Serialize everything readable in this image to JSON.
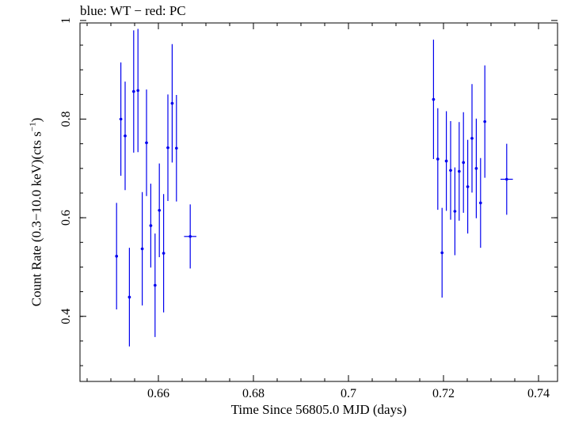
{
  "chart_data": {
    "type": "scatter",
    "title": "blue: WT − red: PC",
    "xlabel": "Time Since 56805.0 MJD (days)",
    "ylabel": "Count Rate (0.3−10.0 keV)(cts s",
    "ylabel_sup": "−1",
    "ylabel_end": ")",
    "xlim": [
      0.6435,
      0.744
    ],
    "ylim": [
      0.268,
      0.995
    ],
    "x_ticks": [
      0.66,
      0.68,
      0.7,
      0.72,
      0.74
    ],
    "x_tick_labels": [
      "0.66",
      "0.68",
      "0.7",
      "0.72",
      "0.74"
    ],
    "y_ticks": [
      0.4,
      0.6,
      0.8,
      1.0
    ],
    "y_tick_labels": [
      "0.4",
      "0.6",
      "0.8",
      "1"
    ],
    "color": "#0000ee",
    "series": [
      {
        "name": "WT",
        "points": [
          {
            "x": 0.6512,
            "y": 0.522,
            "yerr": 0.108,
            "xerr": 0.0003
          },
          {
            "x": 0.6521,
            "y": 0.8,
            "yerr": 0.115,
            "xerr": 0.0003
          },
          {
            "x": 0.653,
            "y": 0.766,
            "yerr": 0.11,
            "xerr": 0.0003
          },
          {
            "x": 0.6539,
            "y": 0.439,
            "yerr": 0.1,
            "xerr": 0.0003
          },
          {
            "x": 0.6548,
            "y": 0.856,
            "yerr": 0.124,
            "xerr": 0.0003
          },
          {
            "x": 0.6557,
            "y": 0.858,
            "yerr": 0.125,
            "xerr": 0.0003
          },
          {
            "x": 0.6566,
            "y": 0.537,
            "yerr": 0.115,
            "xerr": 0.0003
          },
          {
            "x": 0.6575,
            "y": 0.752,
            "yerr": 0.108,
            "xerr": 0.0003
          },
          {
            "x": 0.6584,
            "y": 0.584,
            "yerr": 0.085,
            "xerr": 0.0003
          },
          {
            "x": 0.6593,
            "y": 0.463,
            "yerr": 0.105,
            "xerr": 0.0003
          },
          {
            "x": 0.6602,
            "y": 0.615,
            "yerr": 0.095,
            "xerr": 0.0003
          },
          {
            "x": 0.6611,
            "y": 0.528,
            "yerr": 0.12,
            "xerr": 0.0003
          },
          {
            "x": 0.662,
            "y": 0.742,
            "yerr": 0.108,
            "xerr": 0.0003
          },
          {
            "x": 0.6629,
            "y": 0.832,
            "yerr": 0.12,
            "xerr": 0.0003
          },
          {
            "x": 0.6638,
            "y": 0.741,
            "yerr": 0.108,
            "xerr": 0.0003
          },
          {
            "x": 0.6667,
            "y": 0.562,
            "yerr": 0.065,
            "xerr": 0.0013
          },
          {
            "x": 0.7179,
            "y": 0.84,
            "yerr": 0.121,
            "xerr": 0.0003
          },
          {
            "x": 0.7188,
            "y": 0.719,
            "yerr": 0.103,
            "xerr": 0.0003
          },
          {
            "x": 0.7197,
            "y": 0.529,
            "yerr": 0.091,
            "xerr": 0.0003
          },
          {
            "x": 0.7206,
            "y": 0.715,
            "yerr": 0.101,
            "xerr": 0.0003
          },
          {
            "x": 0.7215,
            "y": 0.696,
            "yerr": 0.1,
            "xerr": 0.0003
          },
          {
            "x": 0.7224,
            "y": 0.613,
            "yerr": 0.089,
            "xerr": 0.0003
          },
          {
            "x": 0.7233,
            "y": 0.694,
            "yerr": 0.1,
            "xerr": 0.0003
          },
          {
            "x": 0.7242,
            "y": 0.712,
            "yerr": 0.102,
            "xerr": 0.0003
          },
          {
            "x": 0.7251,
            "y": 0.663,
            "yerr": 0.095,
            "xerr": 0.0003
          },
          {
            "x": 0.726,
            "y": 0.761,
            "yerr": 0.11,
            "xerr": 0.0003
          },
          {
            "x": 0.7269,
            "y": 0.7,
            "yerr": 0.101,
            "xerr": 0.0003
          },
          {
            "x": 0.7278,
            "y": 0.63,
            "yerr": 0.091,
            "xerr": 0.0003
          },
          {
            "x": 0.7287,
            "y": 0.795,
            "yerr": 0.114,
            "xerr": 0.0003
          },
          {
            "x": 0.7333,
            "y": 0.678,
            "yerr": 0.072,
            "xerr": 0.0013
          }
        ]
      }
    ]
  }
}
